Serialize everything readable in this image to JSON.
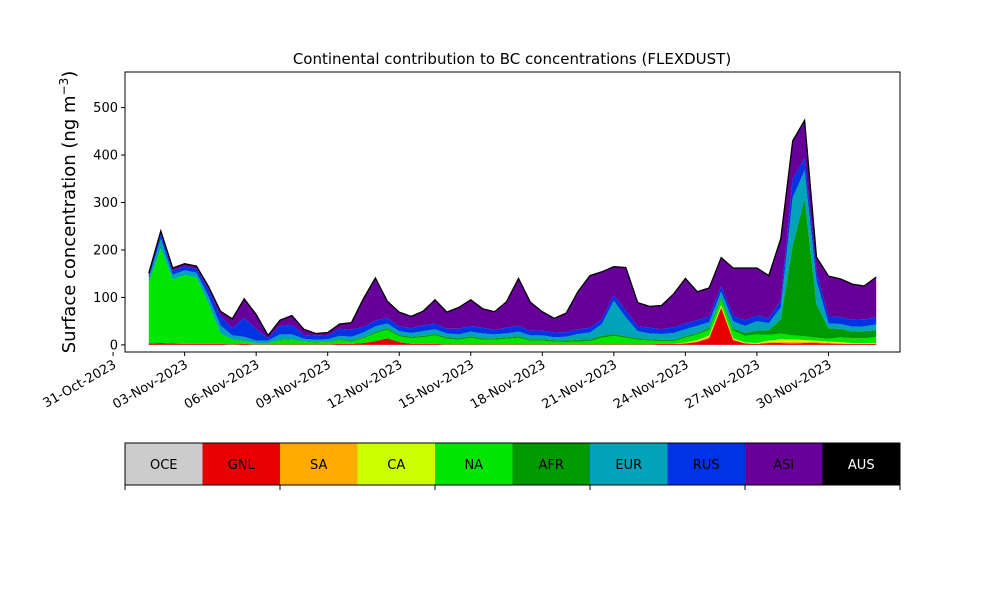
{
  "chart_data": {
    "type": "area",
    "title": "Continental contribution to BC concentrations (FLEXDUST)",
    "ylabel": "Surface concentration (ng m",
    "ylabel_sup": "−3",
    "ylabel_close": ")",
    "xlabel": "",
    "xlim": [
      "2023-10-31T12:00",
      "2023-12-03T00:00"
    ],
    "ylim": [
      -15,
      575
    ],
    "yticks": [
      0,
      100,
      200,
      300,
      400,
      500
    ],
    "xticks": [
      "2023-10-31",
      "2023-11-03",
      "2023-11-06",
      "2023-11-09",
      "2023-11-12",
      "2023-11-15",
      "2023-11-18",
      "2023-11-21",
      "2023-11-24",
      "2023-11-27",
      "2023-11-30"
    ],
    "xtick_labels": [
      "31-Oct-2023",
      "03-Nov-2023",
      "06-Nov-2023",
      "09-Nov-2023",
      "12-Nov-2023",
      "15-Nov-2023",
      "18-Nov-2023",
      "21-Nov-2023",
      "24-Nov-2023",
      "27-Nov-2023",
      "30-Nov-2023"
    ],
    "legend_placement": "colorbar below plot",
    "regions": [
      {
        "code": "OCE",
        "color": "#cccccc"
      },
      {
        "code": "GNL",
        "color": "#e60000"
      },
      {
        "code": "SA",
        "color": "#ffaa00"
      },
      {
        "code": "CA",
        "color": "#ccff00"
      },
      {
        "code": "NA",
        "color": "#00e600"
      },
      {
        "code": "AFR",
        "color": "#009900"
      },
      {
        "code": "EUR",
        "color": "#00a3b8"
      },
      {
        "code": "RUS",
        "color": "#0033e6"
      },
      {
        "code": "ASI",
        "color": "#660099"
      },
      {
        "code": "AUS",
        "color": "#000000"
      }
    ],
    "x": [
      "2023-11-01T12:00",
      "2023-11-02T00:00",
      "2023-11-02T12:00",
      "2023-11-03T00:00",
      "2023-11-03T12:00",
      "2023-11-04T00:00",
      "2023-11-04T12:00",
      "2023-11-05T00:00",
      "2023-11-05T12:00",
      "2023-11-06T00:00",
      "2023-11-06T12:00",
      "2023-11-07T00:00",
      "2023-11-07T12:00",
      "2023-11-08T00:00",
      "2023-11-08T12:00",
      "2023-11-09T00:00",
      "2023-11-09T12:00",
      "2023-11-10T00:00",
      "2023-11-10T12:00",
      "2023-11-11T00:00",
      "2023-11-11T12:00",
      "2023-11-12T00:00",
      "2023-11-12T12:00",
      "2023-11-13T00:00",
      "2023-11-13T12:00",
      "2023-11-14T00:00",
      "2023-11-14T12:00",
      "2023-11-15T00:00",
      "2023-11-15T12:00",
      "2023-11-16T00:00",
      "2023-11-16T12:00",
      "2023-11-17T00:00",
      "2023-11-17T12:00",
      "2023-11-18T00:00",
      "2023-11-18T12:00",
      "2023-11-19T00:00",
      "2023-11-19T12:00",
      "2023-11-20T00:00",
      "2023-11-20T12:00",
      "2023-11-21T00:00",
      "2023-11-21T12:00",
      "2023-11-22T00:00",
      "2023-11-22T12:00",
      "2023-11-23T00:00",
      "2023-11-23T12:00",
      "2023-11-24T00:00",
      "2023-11-24T12:00",
      "2023-11-25T00:00",
      "2023-11-25T12:00",
      "2023-11-26T00:00",
      "2023-11-26T12:00",
      "2023-11-27T00:00",
      "2023-11-27T12:00",
      "2023-11-28T00:00",
      "2023-11-28T12:00",
      "2023-11-29T00:00",
      "2023-11-29T12:00",
      "2023-11-30T00:00",
      "2023-11-30T12:00",
      "2023-12-01T00:00",
      "2023-12-01T12:00",
      "2023-12-02T00:00"
    ],
    "series": [
      {
        "code": "GNL",
        "values": [
          3,
          4,
          3,
          2,
          2,
          2,
          2,
          1,
          2,
          1,
          1,
          1,
          1,
          1,
          1,
          1,
          2,
          2,
          4,
          8,
          14,
          6,
          2,
          2,
          2,
          1,
          1,
          1,
          1,
          1,
          1,
          1,
          1,
          1,
          1,
          1,
          1,
          1,
          1,
          1,
          1,
          1,
          1,
          2,
          2,
          3,
          6,
          14,
          78,
          10,
          3,
          2,
          4,
          4,
          3,
          4,
          4,
          3,
          2,
          2,
          2,
          2
        ]
      },
      {
        "code": "SA",
        "values": [
          0,
          0,
          0,
          0,
          0,
          0,
          0,
          0,
          0,
          0,
          0,
          0,
          0,
          0,
          0,
          0,
          0,
          0,
          0,
          0,
          0,
          0,
          0,
          0,
          0,
          0,
          0,
          0,
          0,
          0,
          0,
          0,
          0,
          0,
          0,
          0,
          0,
          0,
          0,
          0,
          0,
          0,
          0,
          0,
          0,
          1,
          2,
          3,
          3,
          2,
          1,
          1,
          2,
          3,
          3,
          2,
          2,
          2,
          2,
          1,
          1,
          1
        ]
      },
      {
        "code": "CA",
        "values": [
          0,
          0,
          0,
          0,
          0,
          0,
          0,
          0,
          0,
          0,
          0,
          0,
          0,
          0,
          0,
          0,
          0,
          0,
          0,
          0,
          0,
          0,
          0,
          0,
          0,
          0,
          0,
          0,
          0,
          0,
          0,
          0,
          0,
          0,
          0,
          0,
          0,
          0,
          0,
          0,
          0,
          0,
          0,
          0,
          0,
          1,
          2,
          3,
          3,
          2,
          1,
          1,
          3,
          5,
          6,
          4,
          3,
          2,
          2,
          1,
          1,
          1
        ]
      },
      {
        "code": "NA",
        "values": [
          130,
          200,
          135,
          145,
          140,
          85,
          22,
          10,
          6,
          3,
          3,
          8,
          10,
          6,
          4,
          5,
          8,
          5,
          10,
          16,
          18,
          12,
          12,
          14,
          18,
          12,
          10,
          14,
          10,
          10,
          12,
          14,
          8,
          8,
          6,
          5,
          6,
          7,
          14,
          18,
          14,
          10,
          8,
          6,
          6,
          10,
          12,
          12,
          12,
          16,
          14,
          18,
          12,
          12,
          8,
          8,
          6,
          6,
          10,
          10,
          10,
          12
        ]
      },
      {
        "code": "AFR",
        "values": [
          0,
          0,
          0,
          0,
          0,
          0,
          1,
          1,
          1,
          0,
          0,
          1,
          1,
          1,
          1,
          1,
          2,
          2,
          2,
          3,
          3,
          3,
          3,
          3,
          3,
          3,
          3,
          3,
          3,
          3,
          3,
          3,
          3,
          3,
          3,
          3,
          4,
          4,
          4,
          4,
          3,
          3,
          3,
          3,
          3,
          3,
          3,
          4,
          4,
          5,
          6,
          8,
          10,
          30,
          190,
          290,
          70,
          22,
          18,
          14,
          15,
          15
        ]
      },
      {
        "code": "EUR",
        "values": [
          8,
          20,
          10,
          10,
          10,
          15,
          16,
          8,
          8,
          5,
          5,
          12,
          10,
          5,
          5,
          5,
          7,
          8,
          10,
          12,
          10,
          8,
          8,
          10,
          10,
          8,
          8,
          10,
          10,
          8,
          8,
          10,
          8,
          8,
          6,
          8,
          12,
          14,
          25,
          70,
          40,
          15,
          12,
          12,
          14,
          15,
          15,
          12,
          12,
          15,
          15,
          20,
          15,
          25,
          100,
          60,
          50,
          10,
          10,
          10,
          10,
          12
        ]
      },
      {
        "code": "RUS",
        "values": [
          6,
          10,
          8,
          8,
          8,
          15,
          20,
          15,
          40,
          25,
          5,
          18,
          20,
          8,
          8,
          8,
          15,
          15,
          12,
          12,
          12,
          10,
          10,
          12,
          12,
          10,
          12,
          12,
          12,
          10,
          12,
          12,
          10,
          10,
          10,
          10,
          10,
          10,
          10,
          12,
          15,
          10,
          12,
          10,
          12,
          12,
          12,
          12,
          12,
          12,
          12,
          12,
          10,
          15,
          40,
          25,
          20,
          15,
          15,
          15,
          15,
          15
        ]
      },
      {
        "code": "ASI",
        "values": [
          4,
          6,
          6,
          6,
          6,
          6,
          10,
          20,
          40,
          30,
          6,
          12,
          20,
          12,
          5,
          6,
          10,
          15,
          60,
          90,
          35,
          30,
          25,
          30,
          50,
          35,
          45,
          55,
          40,
          38,
          55,
          100,
          60,
          40,
          30,
          40,
          80,
          110,
          100,
          60,
          90,
          50,
          45,
          50,
          70,
          95,
          60,
          60,
          60,
          100,
          110,
          100,
          90,
          130,
          80,
          80,
          30,
          85,
          80,
          75,
          70,
          85
        ]
      },
      {
        "code": "AUS",
        "values": [
          0,
          0,
          0,
          0,
          0,
          0,
          0,
          0,
          0,
          0,
          0,
          0,
          0,
          0,
          0,
          0,
          0,
          0,
          0,
          0,
          0,
          0,
          0,
          0,
          0,
          0,
          0,
          0,
          0,
          0,
          0,
          0,
          0,
          0,
          0,
          0,
          0,
          0,
          0,
          0,
          0,
          0,
          0,
          0,
          0,
          0,
          0,
          0,
          0,
          0,
          0,
          0,
          0,
          0,
          0,
          0,
          0,
          0,
          0,
          0,
          0,
          0
        ]
      }
    ]
  }
}
